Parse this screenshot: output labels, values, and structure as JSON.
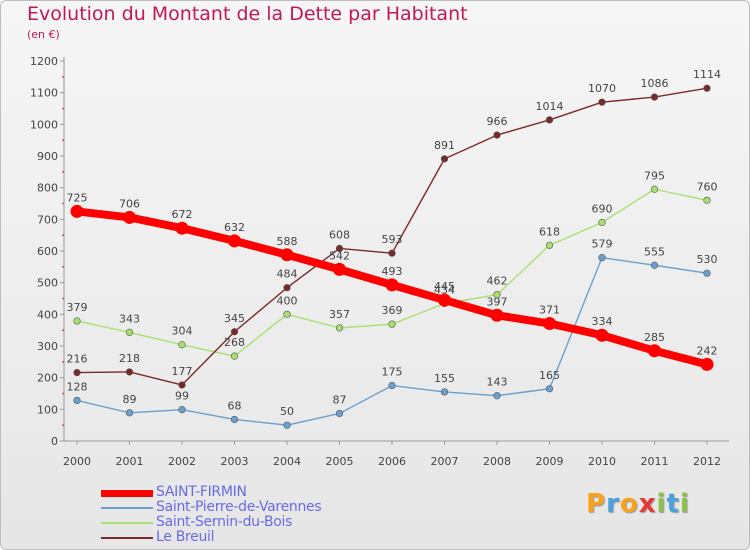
{
  "title": "Evolution du Montant de la Dette par Habitant",
  "unit_label": "(en €)",
  "logo": {
    "letters": [
      "P",
      "r",
      "o",
      "x",
      "i",
      "t",
      "i"
    ],
    "colors": [
      "#f6a21d",
      "#4aa3df",
      "#f6a21d",
      "#e53935",
      "#8bc34a",
      "#4aa3df",
      "#8bc34a"
    ]
  },
  "chart_data": {
    "type": "line",
    "x": [
      "2000",
      "2001",
      "2002",
      "2003",
      "2004",
      "2005",
      "2006",
      "2007",
      "2008",
      "2009",
      "2010",
      "2011",
      "2012"
    ],
    "ylim": [
      0,
      1200
    ],
    "yticks": [
      0,
      100,
      200,
      300,
      400,
      500,
      600,
      700,
      800,
      900,
      1000,
      1100,
      1200
    ],
    "grid": false,
    "legend_position": "bottom-left",
    "series": [
      {
        "name": "SAINT-FIRMIN",
        "color": "#ff0000",
        "width": 8,
        "values": [
          725,
          706,
          672,
          632,
          588,
          542,
          493,
          445,
          397,
          371,
          334,
          285,
          242
        ]
      },
      {
        "name": "Saint-Pierre-de-Varennes",
        "color": "#6aa0cf",
        "width": 1.4,
        "values": [
          128,
          89,
          99,
          68,
          50,
          87,
          175,
          155,
          143,
          165,
          579,
          555,
          530
        ]
      },
      {
        "name": "Saint-Sernin-du-Bois",
        "color": "#a8e06f",
        "width": 1.4,
        "values": [
          379,
          343,
          304,
          268,
          400,
          357,
          369,
          434,
          462,
          618,
          690,
          795,
          760
        ]
      },
      {
        "name": "Le Breuil",
        "color": "#7a2a2a",
        "width": 1.4,
        "values": [
          216,
          218,
          177,
          345,
          484,
          608,
          593,
          891,
          966,
          1014,
          1070,
          1086,
          1114
        ]
      }
    ]
  }
}
